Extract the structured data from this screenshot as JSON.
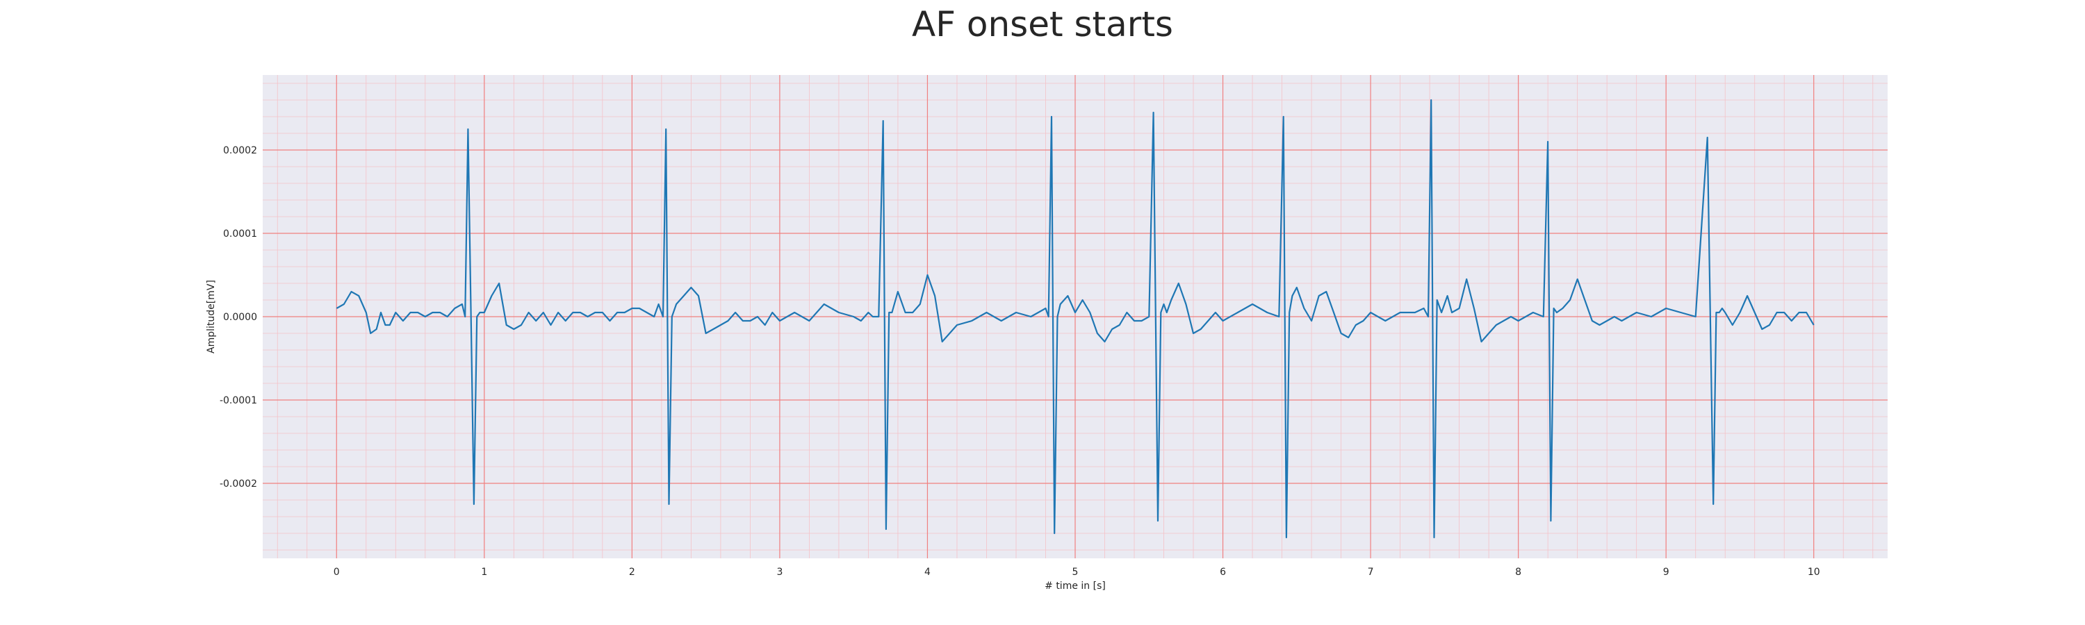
{
  "chart_data": {
    "type": "line",
    "title": "AF onset starts",
    "xlabel": "# time in [s]",
    "ylabel": "Amplitude[mV]",
    "xlim": [
      -0.5,
      10.5
    ],
    "ylim": [
      -0.00029,
      0.00029
    ],
    "x_ticks": [
      0,
      1,
      2,
      3,
      4,
      5,
      6,
      7,
      8,
      9,
      10
    ],
    "x_tick_labels": [
      "0",
      "1",
      "2",
      "3",
      "4",
      "5",
      "6",
      "7",
      "8",
      "9",
      "10"
    ],
    "y_ticks": [
      0.0002,
      0.0001,
      0.0,
      -0.0001,
      -0.0002
    ],
    "y_tick_labels": [
      "0.0002",
      "0.0001",
      "0.0000",
      "-0.0001",
      "-0.0002"
    ],
    "grid": true,
    "background_color": "#eaeaf2",
    "major_grid_color": "#f08080",
    "minor_grid_color": "#f5c2c8",
    "series": [
      {
        "color": "#1f77b4",
        "x": [
          0.0,
          0.05,
          0.1,
          0.15,
          0.2,
          0.23,
          0.27,
          0.3,
          0.33,
          0.36,
          0.4,
          0.45,
          0.5,
          0.55,
          0.6,
          0.65,
          0.7,
          0.75,
          0.8,
          0.85,
          0.87,
          0.89,
          0.91,
          0.93,
          0.95,
          0.97,
          1.0,
          1.05,
          1.1,
          1.15,
          1.2,
          1.25,
          1.3,
          1.35,
          1.4,
          1.45,
          1.5,
          1.55,
          1.6,
          1.65,
          1.7,
          1.75,
          1.8,
          1.85,
          1.9,
          1.95,
          2.0,
          2.05,
          2.1,
          2.15,
          2.18,
          2.21,
          2.23,
          2.25,
          2.27,
          2.3,
          2.35,
          2.4,
          2.45,
          2.5,
          2.55,
          2.6,
          2.65,
          2.7,
          2.75,
          2.8,
          2.85,
          2.9,
          2.95,
          3.0,
          3.1,
          3.2,
          3.3,
          3.4,
          3.5,
          3.55,
          3.6,
          3.63,
          3.67,
          3.7,
          3.72,
          3.74,
          3.76,
          3.8,
          3.85,
          3.9,
          3.95,
          4.0,
          4.05,
          4.1,
          4.2,
          4.3,
          4.4,
          4.5,
          4.6,
          4.7,
          4.75,
          4.8,
          4.82,
          4.84,
          4.86,
          4.88,
          4.9,
          4.95,
          5.0,
          5.05,
          5.1,
          5.15,
          5.2,
          5.25,
          5.3,
          5.35,
          5.4,
          5.45,
          5.5,
          5.53,
          5.56,
          5.58,
          5.6,
          5.62,
          5.65,
          5.7,
          5.75,
          5.8,
          5.85,
          5.9,
          5.95,
          6.0,
          6.1,
          6.2,
          6.3,
          6.38,
          6.41,
          6.43,
          6.45,
          6.47,
          6.5,
          6.55,
          6.6,
          6.65,
          6.7,
          6.75,
          6.8,
          6.85,
          6.9,
          6.95,
          7.0,
          7.1,
          7.2,
          7.3,
          7.36,
          7.39,
          7.41,
          7.43,
          7.45,
          7.48,
          7.52,
          7.55,
          7.6,
          7.65,
          7.7,
          7.75,
          7.8,
          7.85,
          7.9,
          7.95,
          8.0,
          8.1,
          8.17,
          8.2,
          8.22,
          8.24,
          8.26,
          8.3,
          8.35,
          8.4,
          8.45,
          8.5,
          8.55,
          8.6,
          8.65,
          8.7,
          8.8,
          8.9,
          9.0,
          9.1,
          9.2,
          9.28,
          9.32,
          9.34,
          9.36,
          9.38,
          9.4,
          9.45,
          9.5,
          9.55,
          9.6,
          9.65,
          9.7,
          9.75,
          9.8,
          9.85,
          9.9,
          9.95,
          10.0
        ],
        "y": [
          1e-05,
          1.5e-05,
          3e-05,
          2.5e-05,
          5e-06,
          -2e-05,
          -1.5e-05,
          5e-06,
          -1e-05,
          -1e-05,
          5e-06,
          -5e-06,
          5e-06,
          5e-06,
          0.0,
          5e-06,
          5e-06,
          0.0,
          1e-05,
          1.5e-05,
          0.0,
          0.000225,
          0.0,
          -0.000225,
          0.0,
          5e-06,
          5e-06,
          2.5e-05,
          4e-05,
          -1e-05,
          -1.5e-05,
          -1e-05,
          5e-06,
          -5e-06,
          5e-06,
          -1e-05,
          5e-06,
          -5e-06,
          5e-06,
          5e-06,
          0.0,
          5e-06,
          5e-06,
          -5e-06,
          5e-06,
          5e-06,
          1e-05,
          1e-05,
          5e-06,
          0.0,
          1.5e-05,
          0.0,
          0.000225,
          -0.000225,
          0.0,
          1.5e-05,
          2.5e-05,
          3.5e-05,
          2.5e-05,
          -2e-05,
          -1.5e-05,
          -1e-05,
          -5e-06,
          5e-06,
          -5e-06,
          -5e-06,
          0.0,
          -1e-05,
          5e-06,
          -5e-06,
          5e-06,
          -5e-06,
          1.5e-05,
          5e-06,
          0.0,
          -5e-06,
          5e-06,
          0.0,
          0.0,
          0.000235,
          -0.000255,
          5e-06,
          5e-06,
          3e-05,
          5e-06,
          5e-06,
          1.5e-05,
          5e-05,
          2.5e-05,
          -3e-05,
          -1e-05,
          -5e-06,
          5e-06,
          -5e-06,
          5e-06,
          0.0,
          5e-06,
          1e-05,
          0.0,
          0.00024,
          -0.00026,
          0.0,
          1.5e-05,
          2.5e-05,
          5e-06,
          2e-05,
          5e-06,
          -2e-05,
          -3e-05,
          -1.5e-05,
          -1e-05,
          5e-06,
          -5e-06,
          -5e-06,
          0.0,
          0.000245,
          -0.000245,
          5e-06,
          1.5e-05,
          5e-06,
          2e-05,
          4e-05,
          1.5e-05,
          -2e-05,
          -1.5e-05,
          -5e-06,
          5e-06,
          -5e-06,
          5e-06,
          1.5e-05,
          5e-06,
          0.0,
          0.00024,
          -0.000265,
          5e-06,
          2.5e-05,
          3.5e-05,
          1e-05,
          -5e-06,
          2.5e-05,
          3e-05,
          5e-06,
          -2e-05,
          -2.5e-05,
          -1e-05,
          -5e-06,
          5e-06,
          -5e-06,
          5e-06,
          5e-06,
          1e-05,
          0.0,
          0.00026,
          -0.000265,
          2e-05,
          5e-06,
          2.5e-05,
          5e-06,
          1e-05,
          4.5e-05,
          1e-05,
          -3e-05,
          -2e-05,
          -1e-05,
          -5e-06,
          0.0,
          -5e-06,
          5e-06,
          0.0,
          0.00021,
          -0.000245,
          1e-05,
          5e-06,
          1e-05,
          2e-05,
          4.5e-05,
          2e-05,
          -5e-06,
          -1e-05,
          -5e-06,
          0.0,
          -5e-06,
          5e-06,
          0.0,
          1e-05,
          5e-06,
          0.0,
          0.000215,
          -0.000225,
          5e-06,
          5e-06,
          1e-05,
          5e-06,
          -1e-05,
          5e-06,
          2.5e-05,
          5e-06,
          -1.5e-05,
          -1e-05,
          5e-06,
          5e-06,
          -5e-06,
          5e-06,
          5e-06,
          -1e-05
        ]
      }
    ]
  }
}
